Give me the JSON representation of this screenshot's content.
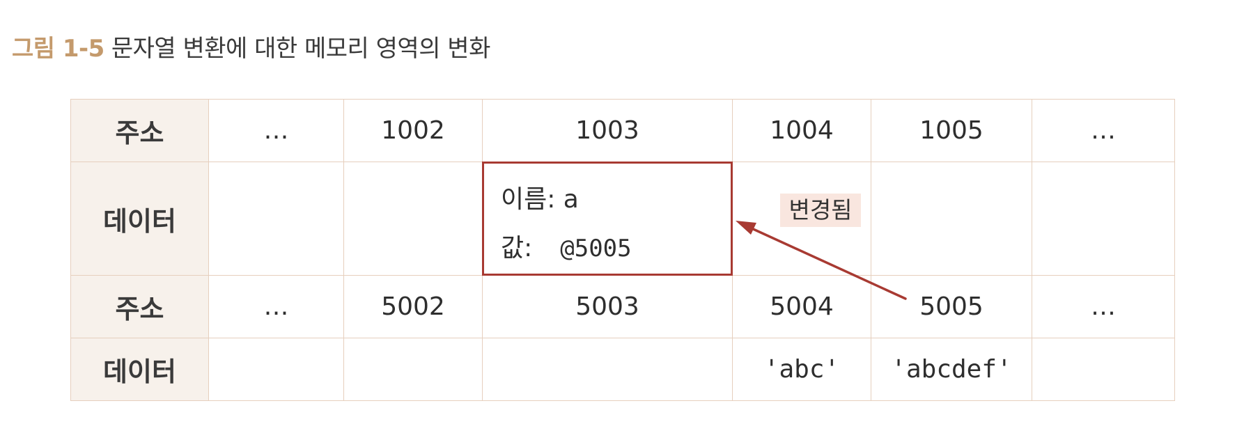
{
  "caption": {
    "label": "그림 1-5",
    "title": "문자열 변환에 대한 메모리 영역의 변화"
  },
  "table": {
    "row_header_address": "주소",
    "row_header_data": "데이터",
    "top_addresses": [
      "…",
      "1002",
      "1003",
      "1004",
      "1005",
      "…"
    ],
    "bottom_addresses": [
      "…",
      "5002",
      "5003",
      "5004",
      "5005",
      "…"
    ],
    "bottom_data": [
      "",
      "",
      "",
      "'abc'",
      "'abcdef'",
      ""
    ]
  },
  "variable_box": {
    "name_line": "이름: a",
    "value_label": "값:",
    "value": "@5005"
  },
  "annotation": {
    "changed_label": "변경됨"
  },
  "colors": {
    "caption_accent": "#c49a6c",
    "grid_border": "#e6cfbd",
    "header_fill": "#f7f1eb",
    "highlight_box": "#a83a32",
    "arrow": "#a83a32",
    "badge_fill": "#f9e6df"
  }
}
